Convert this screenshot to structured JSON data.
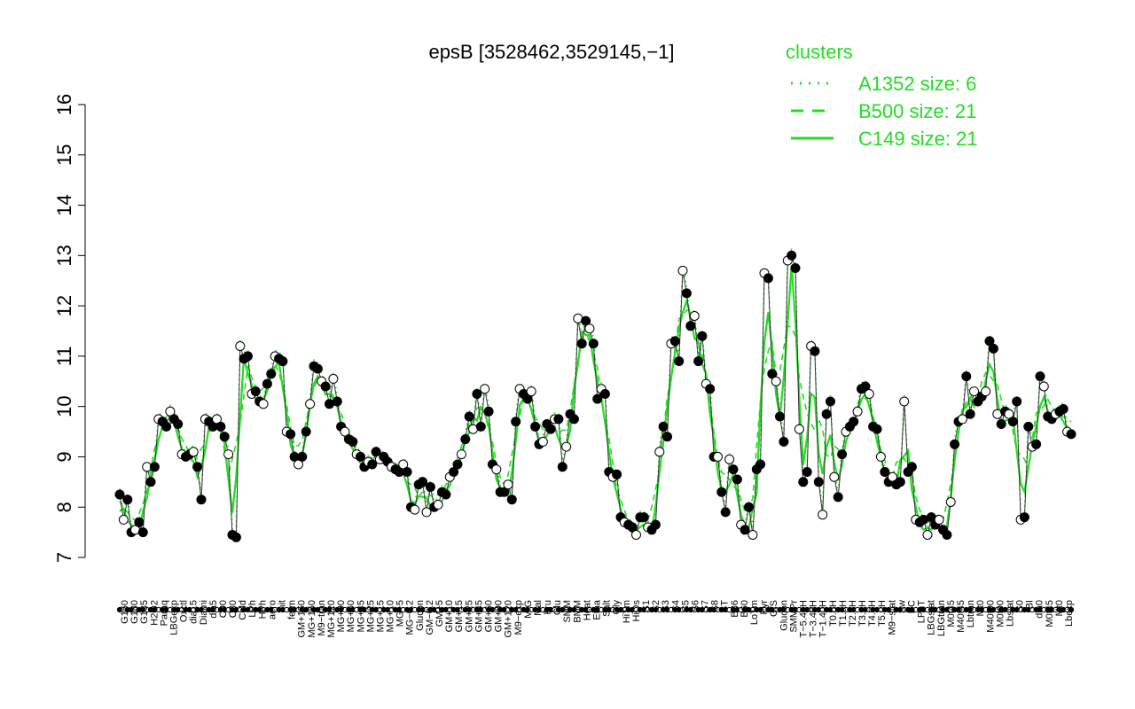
{
  "chart_data": {
    "type": "line",
    "title": "epsB [3528462,3529145,−1]",
    "xlabel": "",
    "ylabel": "",
    "ylim": [
      7,
      16
    ],
    "yticks": [
      7,
      8,
      9,
      10,
      11,
      12,
      13,
      14,
      15,
      16
    ],
    "legend": {
      "title": "clusters",
      "placement": "top-right",
      "entries": [
        {
          "label": "A1352 size: 6",
          "style": "dotted"
        },
        {
          "label": "B500 size: 21",
          "style": "dashed"
        },
        {
          "label": "C149 size: 21",
          "style": "solid"
        }
      ]
    },
    "colors": {
      "cluster_lines": "#22dd22",
      "points": "#000000",
      "axis": "#000000"
    },
    "x_labels": [
      "G150",
      "G180",
      "G135",
      "H2O2",
      "Paraq",
      "LBGexp",
      "Oxctl",
      "dia15",
      "Diami",
      "dia5",
      "C90",
      "C30",
      "Cold",
      "LPh",
      "HPh",
      "aero",
      "nit",
      "ferm",
      "GM+150",
      "MG+150",
      "M9−tran",
      "MG+120",
      "MG+90",
      "MG+60",
      "MG+45",
      "MG+25",
      "MG+15",
      "MG+10",
      "MG+5",
      "MG−0.2",
      "Glucon",
      "GM−0.2",
      "GM+5",
      "GM+10",
      "GM+15",
      "GM+25",
      "GM+45",
      "GM+60",
      "GM+90",
      "GM+120",
      "M9−exp",
      "M/G",
      "Mal",
      "Fru",
      "Glu",
      "SMM",
      "BMM",
      "Heat",
      "Etha",
      "Salt",
      "Gly",
      "HiTm",
      "HiOs",
      "S1",
      "S2",
      "S3",
      "S4",
      "S5",
      "S6",
      "S7",
      "S8",
      "BT",
      "B36",
      "B60",
      "LoTm",
      "Pyr",
      "G/S",
      "Glucon",
      "SMMPr",
      "T−5.40H",
      "T−3.40H",
      "T−1.40H",
      "T0.0H",
      "T1.0H",
      "T2.0H",
      "T3.0H",
      "T4.0H",
      "T5.0H",
      "M9−stat",
      "Sw",
      "BC",
      "LPhT",
      "LBGstat",
      "LBGtran",
      "M0t45",
      "M40t45",
      "Lbtran",
      "Mt0",
      "M40t90",
      "M0t90",
      "Lbstat",
      "S0",
      "BI",
      "dia0",
      "M0t45",
      "Mt0",
      "Lbexp"
    ],
    "series": [
      {
        "values": [
          8.25,
          7.75,
          8.15,
          7.5,
          7.55,
          7.7,
          7.5,
          8.8,
          8.5,
          8.8,
          9.75,
          9.7,
          9.6,
          9.9,
          9.75,
          9.65,
          9.05,
          9.0,
          9.05,
          9.1,
          8.8,
          8.15,
          9.75,
          9.7,
          9.6,
          9.75,
          9.6,
          9.4,
          9.05,
          7.45,
          7.4,
          11.2,
          10.95,
          11.0,
          10.25,
          10.3,
          10.1,
          10.05,
          10.45,
          10.65,
          11.0,
          10.95,
          10.9,
          9.5,
          9.45,
          9.0,
          8.85,
          9.0,
          9.5,
          10.05,
          10.8,
          10.75,
          10.5,
          10.4,
          10.05,
          10.55,
          10.1,
          9.6,
          9.5,
          9.35,
          9.3,
          9.05,
          9.0,
          8.8,
          8.9,
          8.85,
          9.1,
          8.95,
          9.0,
          8.9,
          8.8,
          8.75,
          8.7,
          8.85,
          8.7,
          8.0,
          7.95,
          8.45,
          8.5,
          7.9,
          8.4,
          8.0,
          8.05,
          8.3,
          8.25,
          8.6,
          8.7,
          8.85,
          9.05,
          9.35,
          9.8,
          9.55,
          10.25,
          9.6,
          10.35,
          9.9,
          8.85,
          8.75,
          8.3,
          8.3,
          8.45,
          8.15,
          9.7,
          10.35,
          10.25,
          10.15,
          10.3,
          9.6,
          9.25,
          9.3,
          9.65,
          9.55,
          9.75,
          9.75,
          8.8,
          9.2,
          9.85,
          9.75,
          11.75,
          11.25,
          11.7,
          11.55,
          11.25,
          10.15,
          10.35,
          10.25,
          8.7,
          8.6,
          8.65,
          7.8,
          7.7,
          7.65,
          7.6,
          7.45,
          7.8,
          7.8,
          7.6,
          7.55,
          7.65,
          9.1,
          9.6,
          9.4,
          11.25,
          11.3,
          10.9,
          12.7,
          12.25,
          11.6,
          11.8,
          10.9,
          11.4,
          10.45,
          10.35,
          9.0,
          9.0,
          8.3,
          7.9,
          8.95,
          8.75,
          8.55,
          7.65,
          7.55,
          8.0,
          7.45,
          8.75,
          8.85,
          12.65,
          12.55,
          10.65,
          10.5,
          9.8,
          9.3,
          12.9,
          13.0,
          12.75,
          9.55,
          8.5,
          8.7,
          11.2,
          11.1,
          8.5,
          7.85,
          9.85,
          10.1,
          8.6,
          8.2,
          9.05,
          9.5,
          9.6,
          9.7,
          9.9,
          10.35,
          10.4,
          10.25,
          9.6,
          9.55,
          9.0,
          8.7,
          8.5,
          8.6,
          8.45,
          8.5,
          10.1,
          8.7,
          8.8,
          7.75,
          7.7,
          7.75,
          7.45,
          7.8,
          7.65,
          7.75,
          7.55,
          7.45,
          8.1,
          9.25,
          9.7,
          9.75,
          10.6,
          9.85,
          10.3,
          10.1,
          10.2,
          10.3,
          11.3,
          11.15,
          9.85,
          9.65,
          9.9,
          9.85,
          9.7,
          10.1,
          7.75,
          7.8,
          9.6,
          9.2,
          9.25,
          10.6,
          10.4,
          9.8,
          9.75,
          9.85,
          9.9,
          9.95,
          9.5,
          9.45
        ]
      }
    ]
  }
}
